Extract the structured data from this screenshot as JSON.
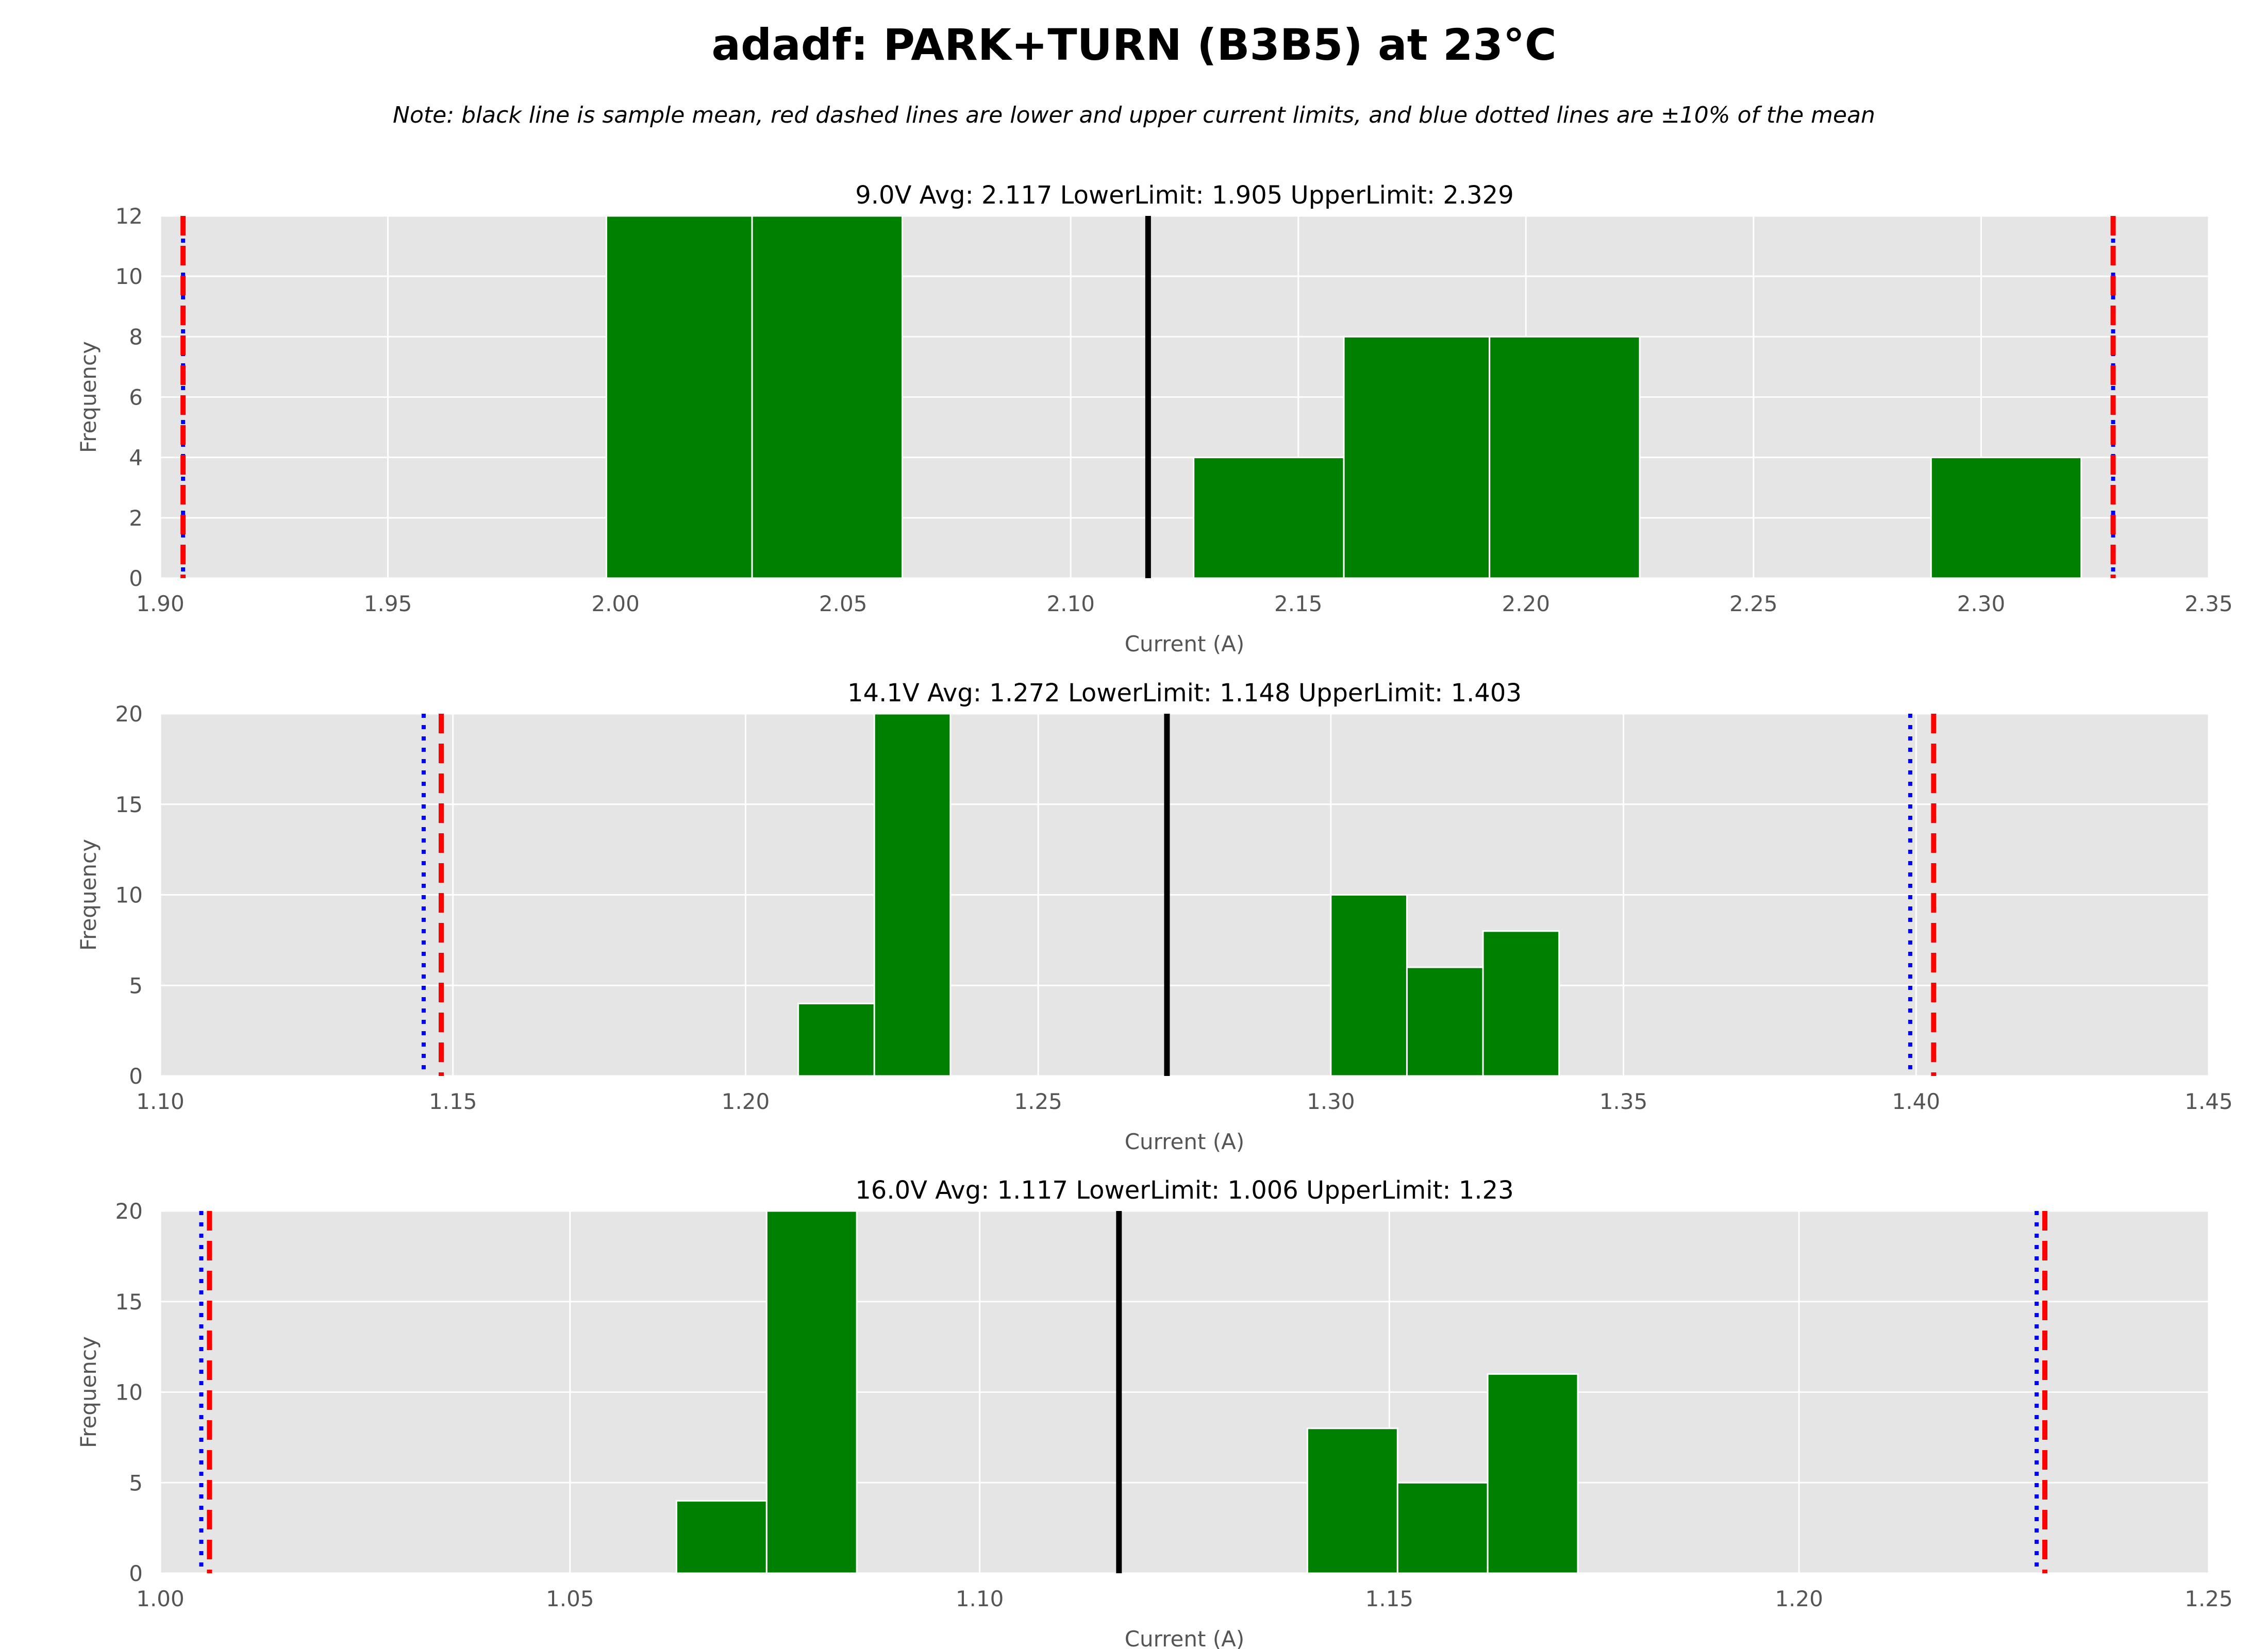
{
  "figure": {
    "title": "adadf: PARK+TURN (B3B5) at 23°C",
    "note": "Note: black line is sample mean, red dashed lines are lower and upper current limits, and blue dotted lines are ±10% of the mean"
  },
  "colors": {
    "bar": "#008000",
    "mean": "#000000",
    "limit": "#ff0000",
    "pct10": "#0000ff",
    "plot_bg": "#e5e5e5",
    "grid": "#ffffff",
    "text": "#000000",
    "axis_text": "#555555"
  },
  "chart_data": [
    {
      "type": "bar",
      "title": "9.0V   Avg: 2.117   LowerLimit: 1.905   UpperLimit: 2.329",
      "xlabel": "Current (A)",
      "ylabel": "Frequency",
      "xlim": [
        1.9,
        2.35
      ],
      "ylim": [
        0,
        12
      ],
      "xticks": [
        1.9,
        1.95,
        2.0,
        2.05,
        2.1,
        2.15,
        2.2,
        2.25,
        2.3,
        2.35
      ],
      "xtick_labels": [
        "1.90",
        "1.95",
        "2.00",
        "2.05",
        "2.10",
        "2.15",
        "2.20",
        "2.25",
        "2.30",
        "2.35"
      ],
      "yticks": [
        0,
        2,
        4,
        6,
        8,
        10,
        12
      ],
      "ytick_labels": [
        "0",
        "2",
        "4",
        "6",
        "8",
        "10",
        "12"
      ],
      "grid": true,
      "bins": [
        {
          "start": 1.998,
          "end": 2.03,
          "count": 12
        },
        {
          "start": 2.03,
          "end": 2.063,
          "count": 12
        },
        {
          "start": 2.127,
          "end": 2.16,
          "count": 4
        },
        {
          "start": 2.16,
          "end": 2.192,
          "count": 8
        },
        {
          "start": 2.192,
          "end": 2.225,
          "count": 8
        },
        {
          "start": 2.289,
          "end": 2.322,
          "count": 4
        }
      ],
      "mean": 2.117,
      "lower_limit": 1.905,
      "upper_limit": 2.329,
      "pct10_low": 1.905,
      "pct10_high": 2.329
    },
    {
      "type": "bar",
      "title": "14.1V   Avg: 1.272   LowerLimit: 1.148   UpperLimit: 1.403",
      "xlabel": "Current (A)",
      "ylabel": "Frequency",
      "xlim": [
        1.1,
        1.45
      ],
      "ylim": [
        0,
        20
      ],
      "xticks": [
        1.1,
        1.15,
        1.2,
        1.25,
        1.3,
        1.35,
        1.4,
        1.45
      ],
      "xtick_labels": [
        "1.10",
        "1.15",
        "1.20",
        "1.25",
        "1.30",
        "1.35",
        "1.40",
        "1.45"
      ],
      "yticks": [
        0,
        5,
        10,
        15,
        20
      ],
      "ytick_labels": [
        "0",
        "5",
        "10",
        "15",
        "20"
      ],
      "grid": true,
      "bins": [
        {
          "start": 1.209,
          "end": 1.222,
          "count": 4
        },
        {
          "start": 1.222,
          "end": 1.235,
          "count": 20
        },
        {
          "start": 1.3,
          "end": 1.313,
          "count": 10
        },
        {
          "start": 1.313,
          "end": 1.326,
          "count": 6
        },
        {
          "start": 1.326,
          "end": 1.339,
          "count": 8
        }
      ],
      "mean": 1.272,
      "lower_limit": 1.148,
      "upper_limit": 1.403,
      "pct10_low": 1.145,
      "pct10_high": 1.399
    },
    {
      "type": "bar",
      "title": "16.0V   Avg: 1.117   LowerLimit: 1.006   UpperLimit: 1.23",
      "xlabel": "Current (A)",
      "ylabel": "Frequency",
      "xlim": [
        1.0,
        1.25
      ],
      "ylim": [
        0,
        20
      ],
      "xticks": [
        1.0,
        1.05,
        1.1,
        1.15,
        1.2,
        1.25
      ],
      "xtick_labels": [
        "1.00",
        "1.05",
        "1.10",
        "1.15",
        "1.20",
        "1.25"
      ],
      "yticks": [
        0,
        5,
        10,
        15,
        20
      ],
      "ytick_labels": [
        "0",
        "5",
        "10",
        "15",
        "20"
      ],
      "grid": true,
      "bins": [
        {
          "start": 1.063,
          "end": 1.074,
          "count": 4
        },
        {
          "start": 1.074,
          "end": 1.085,
          "count": 20
        },
        {
          "start": 1.14,
          "end": 1.151,
          "count": 8
        },
        {
          "start": 1.151,
          "end": 1.162,
          "count": 5
        },
        {
          "start": 1.162,
          "end": 1.173,
          "count": 11
        }
      ],
      "mean": 1.117,
      "lower_limit": 1.006,
      "upper_limit": 1.23,
      "pct10_low": 1.005,
      "pct10_high": 1.229
    }
  ]
}
